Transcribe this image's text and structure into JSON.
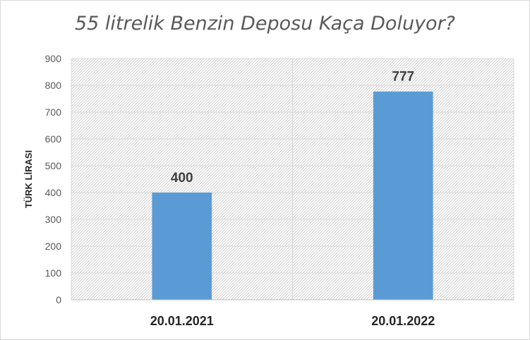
{
  "chart_data": {
    "type": "bar",
    "title": "55 litrelik Benzin Deposu Kaça Doluyor?",
    "xlabel": "",
    "ylabel": "TÜRK LİRASI",
    "categories": [
      "20.01.2021",
      "20.01.2022"
    ],
    "values": [
      400,
      777
    ],
    "data_labels": [
      "400",
      "777"
    ],
    "ylim": [
      0,
      900
    ],
    "yticks": [
      0,
      100,
      200,
      300,
      400,
      500,
      600,
      700,
      800,
      900
    ],
    "grid": true,
    "legend": "none",
    "bar_color": "#5b9bd5",
    "plot_background": "hatched light gray"
  }
}
